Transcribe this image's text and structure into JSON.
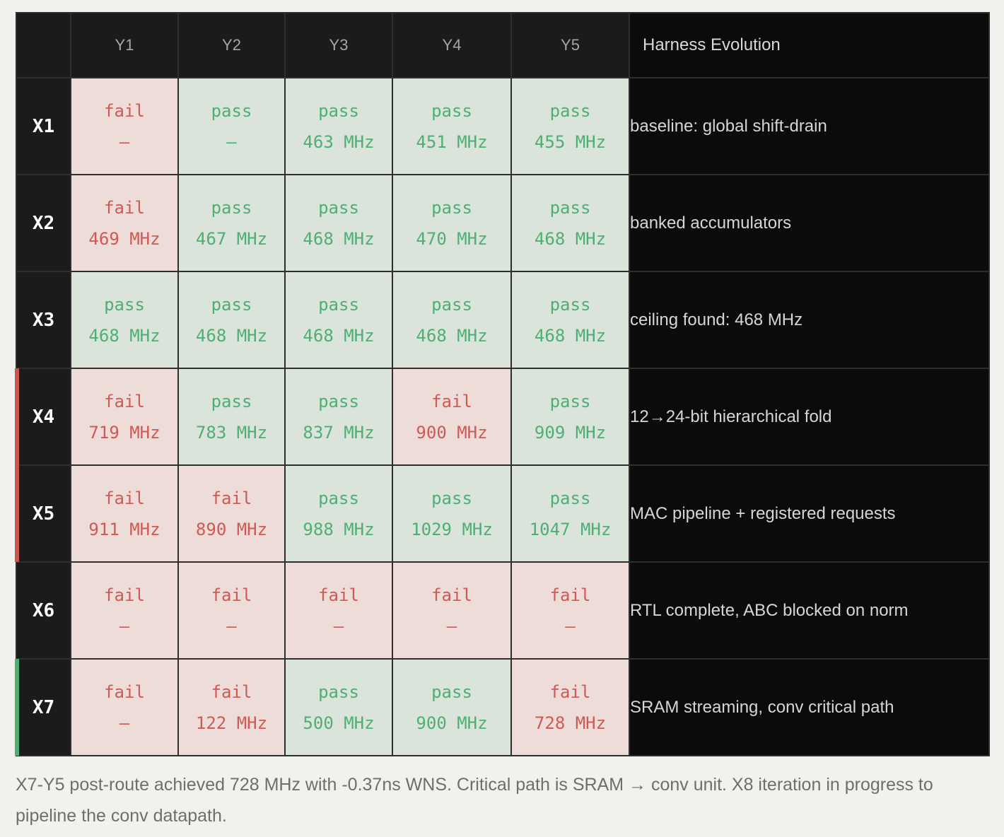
{
  "chart_data": {
    "type": "table",
    "columns": [
      "Y1",
      "Y2",
      "Y3",
      "Y4",
      "Y5"
    ],
    "note_header": "Harness Evolution",
    "rows": [
      {
        "label": "X1",
        "accent": null,
        "cells": [
          {
            "status": "fail",
            "freq": "—"
          },
          {
            "status": "pass",
            "freq": "—"
          },
          {
            "status": "pass",
            "freq": "463 MHz"
          },
          {
            "status": "pass",
            "freq": "451 MHz"
          },
          {
            "status": "pass",
            "freq": "455 MHz"
          }
        ],
        "note": "baseline: global shift-drain"
      },
      {
        "label": "X2",
        "accent": null,
        "cells": [
          {
            "status": "fail",
            "freq": "469 MHz"
          },
          {
            "status": "pass",
            "freq": "467 MHz"
          },
          {
            "status": "pass",
            "freq": "468 MHz"
          },
          {
            "status": "pass",
            "freq": "470 MHz"
          },
          {
            "status": "pass",
            "freq": "468 MHz"
          }
        ],
        "note": "banked accumulators"
      },
      {
        "label": "X3",
        "accent": null,
        "cells": [
          {
            "status": "pass",
            "freq": "468 MHz"
          },
          {
            "status": "pass",
            "freq": "468 MHz"
          },
          {
            "status": "pass",
            "freq": "468 MHz"
          },
          {
            "status": "pass",
            "freq": "468 MHz"
          },
          {
            "status": "pass",
            "freq": "468 MHz"
          }
        ],
        "note": "ceiling found: 468 MHz"
      },
      {
        "label": "X4",
        "accent": "#c95550",
        "cells": [
          {
            "status": "fail",
            "freq": "719 MHz"
          },
          {
            "status": "pass",
            "freq": "783 MHz"
          },
          {
            "status": "pass",
            "freq": "837 MHz"
          },
          {
            "status": "fail",
            "freq": "900 MHz"
          },
          {
            "status": "pass",
            "freq": "909 MHz"
          }
        ],
        "note": "12→24-bit hierarchical fold"
      },
      {
        "label": "X5",
        "accent": "#c95550",
        "cells": [
          {
            "status": "fail",
            "freq": "911 MHz"
          },
          {
            "status": "fail",
            "freq": "890 MHz"
          },
          {
            "status": "pass",
            "freq": "988 MHz"
          },
          {
            "status": "pass",
            "freq": "1029 MHz"
          },
          {
            "status": "pass",
            "freq": "1047 MHz"
          }
        ],
        "note": "MAC pipeline + registered requests"
      },
      {
        "label": "X6",
        "accent": null,
        "cells": [
          {
            "status": "fail",
            "freq": "—"
          },
          {
            "status": "fail",
            "freq": "—"
          },
          {
            "status": "fail",
            "freq": "—"
          },
          {
            "status": "fail",
            "freq": "—"
          },
          {
            "status": "fail",
            "freq": "—"
          }
        ],
        "note": "RTL complete, ABC blocked on norm"
      },
      {
        "label": "X7",
        "accent": "#4fae74",
        "cells": [
          {
            "status": "fail",
            "freq": "—"
          },
          {
            "status": "fail",
            "freq": "122 MHz"
          },
          {
            "status": "pass",
            "freq": "500 MHz"
          },
          {
            "status": "pass",
            "freq": "900 MHz"
          },
          {
            "status": "fail",
            "freq": "728 MHz"
          }
        ],
        "note": "SRAM streaming, conv critical path"
      }
    ]
  },
  "caption": "X7-Y5 post-route achieved 728 MHz with -0.37ns WNS. Critical path is SRAM → conv unit. X8 iteration in progress to pipeline the conv datapath.",
  "colors": {
    "pass_bg": "#dbe4db",
    "pass_text": "#4fae74",
    "fail_bg": "#eedcd8",
    "fail_text": "#cf5a55",
    "header_bg": "#1b1b1b",
    "note_bg": "#0b0b0b"
  }
}
